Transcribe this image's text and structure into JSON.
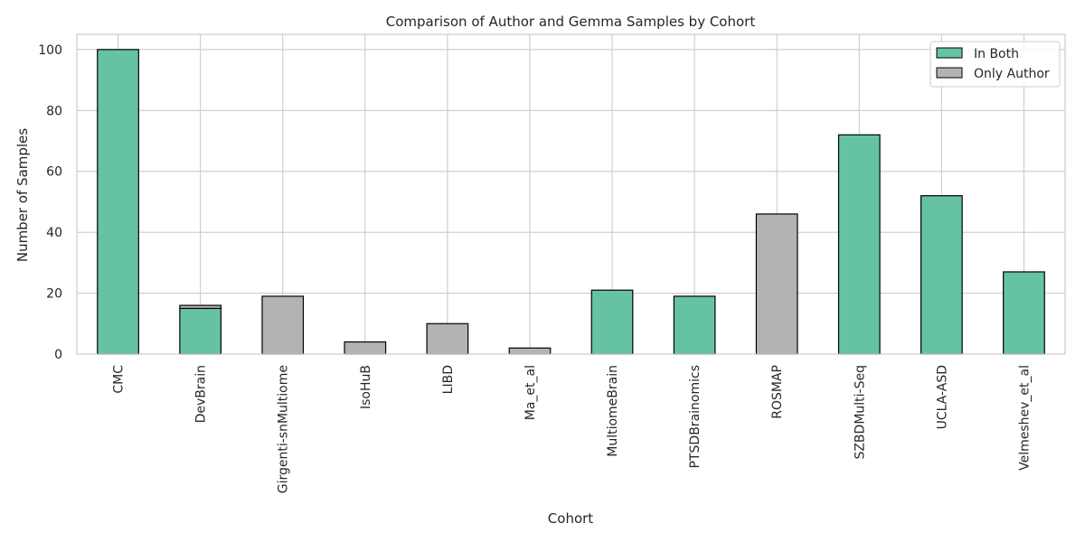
{
  "chart_data": {
    "type": "bar",
    "stacked": true,
    "title": "Comparison of Author and Gemma Samples by Cohort",
    "xlabel": "Cohort",
    "ylabel": "Number of Samples",
    "ylim": [
      0,
      105
    ],
    "yticks": [
      0,
      20,
      40,
      60,
      80,
      100
    ],
    "grid": true,
    "legend_position": "top-right",
    "categories": [
      "CMC",
      "DevBrain",
      "Girgenti-snMultiome",
      "IsoHuB",
      "LIBD",
      "Ma_et_al",
      "MultiomeBrain",
      "PTSDBrainomics",
      "ROSMAP",
      "SZBDMulti-Seq",
      "UCLA-ASD",
      "Velmeshev_et_al"
    ],
    "series": [
      {
        "name": "In Both",
        "color": "#66c2a5",
        "values": [
          100,
          15,
          0,
          0,
          0,
          0,
          21,
          19,
          0,
          72,
          52,
          27
        ]
      },
      {
        "name": "Only Author",
        "color": "#b3b3b3",
        "values": [
          0,
          1,
          19,
          4,
          10,
          2,
          0,
          0,
          46,
          0,
          0,
          0
        ]
      }
    ]
  }
}
